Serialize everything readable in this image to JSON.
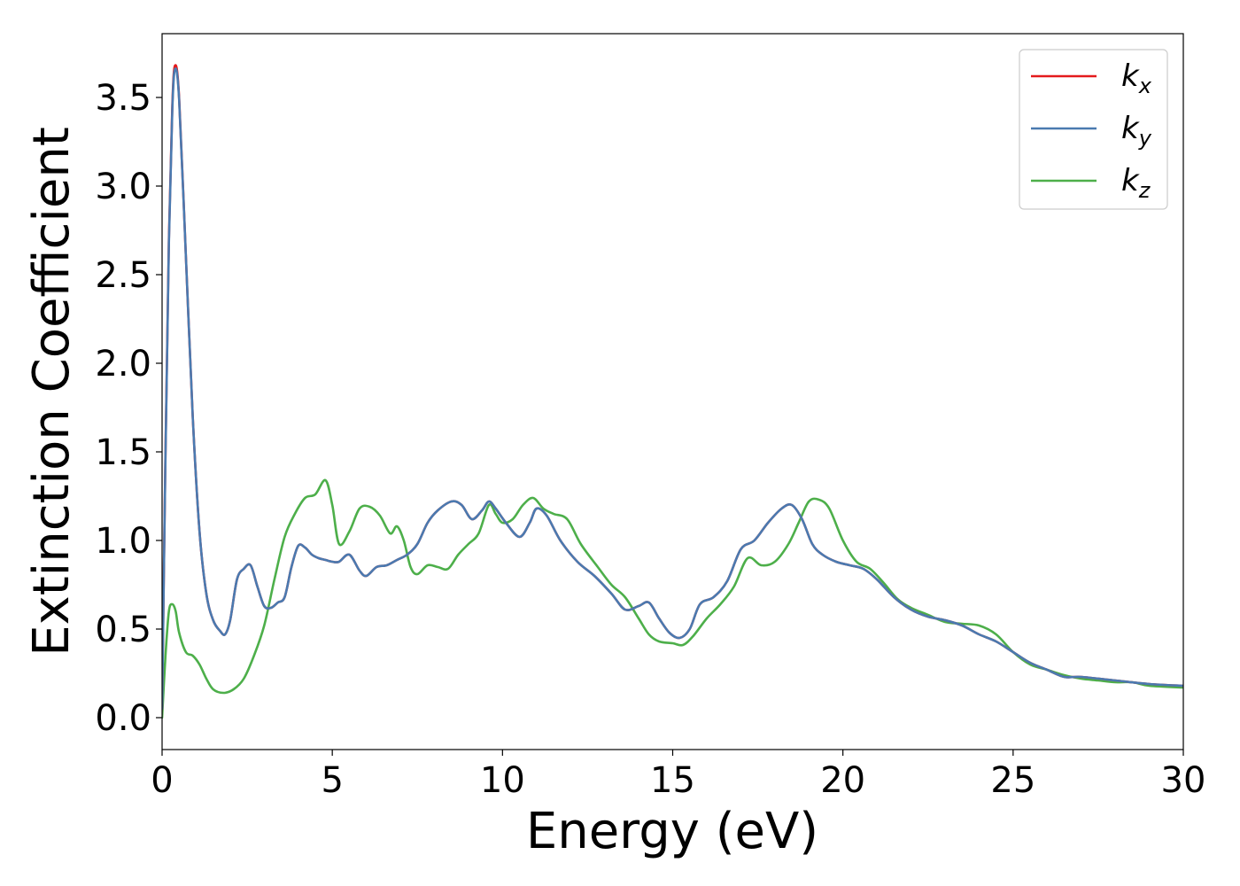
{
  "chart_data": {
    "type": "line",
    "xlabel": "Energy (eV)",
    "ylabel": "Extinction Coefficient",
    "xlim": [
      0,
      30
    ],
    "ylim": [
      -0.18,
      3.86
    ],
    "xticks": [
      0,
      5,
      10,
      15,
      20,
      25,
      30
    ],
    "yticks": [
      0.0,
      0.5,
      1.0,
      1.5,
      2.0,
      2.5,
      3.0,
      3.5
    ],
    "xtick_labels": [
      "0",
      "5",
      "10",
      "15",
      "20",
      "25",
      "30"
    ],
    "ytick_labels": [
      "0.0",
      "0.5",
      "1.0",
      "1.5",
      "2.0",
      "2.5",
      "3.0",
      "3.5"
    ],
    "legend_position": "top-right",
    "grid": false,
    "series": [
      {
        "name": "k_x",
        "label_base": "k",
        "label_sub": "x",
        "color": "#e41a1c",
        "x": [
          0,
          0.1,
          0.2,
          0.3,
          0.38,
          0.5,
          0.7,
          0.9,
          1.1,
          1.3,
          1.5,
          1.7,
          1.85,
          2.0,
          2.2,
          2.4,
          2.6,
          2.8,
          3.0,
          3.2,
          3.4,
          3.6,
          3.8,
          4.0,
          4.2,
          4.4,
          4.6,
          4.8,
          5.0,
          5.2,
          5.5,
          5.8,
          6.0,
          6.3,
          6.6,
          6.9,
          7.2,
          7.5,
          7.8,
          8.1,
          8.5,
          8.8,
          9.1,
          9.4,
          9.6,
          9.8,
          10.1,
          10.5,
          10.8,
          11.0,
          11.3,
          11.7,
          12.2,
          12.7,
          13.2,
          13.6,
          14.0,
          14.3,
          14.6,
          14.9,
          15.2,
          15.5,
          15.8,
          16.2,
          16.6,
          17.0,
          17.4,
          17.8,
          18.2,
          18.5,
          18.8,
          19.1,
          19.4,
          19.8,
          20.2,
          20.6,
          21.0,
          21.5,
          22.0,
          22.5,
          23.0,
          23.5,
          24.0,
          24.5,
          25.0,
          25.5,
          26.0,
          26.5,
          27.0,
          28.0,
          29.0,
          30.0
        ],
        "y": [
          0.05,
          1.5,
          2.7,
          3.45,
          3.68,
          3.5,
          2.6,
          1.7,
          1.05,
          0.7,
          0.55,
          0.49,
          0.47,
          0.55,
          0.78,
          0.84,
          0.86,
          0.74,
          0.63,
          0.62,
          0.65,
          0.68,
          0.85,
          0.97,
          0.96,
          0.92,
          0.9,
          0.89,
          0.88,
          0.88,
          0.92,
          0.83,
          0.8,
          0.85,
          0.86,
          0.89,
          0.92,
          0.98,
          1.1,
          1.17,
          1.22,
          1.2,
          1.12,
          1.17,
          1.22,
          1.18,
          1.1,
          1.02,
          1.1,
          1.18,
          1.14,
          1.0,
          0.88,
          0.8,
          0.7,
          0.61,
          0.63,
          0.65,
          0.56,
          0.48,
          0.45,
          0.5,
          0.64,
          0.68,
          0.77,
          0.95,
          1.0,
          1.1,
          1.18,
          1.2,
          1.12,
          0.98,
          0.92,
          0.88,
          0.86,
          0.84,
          0.78,
          0.68,
          0.61,
          0.57,
          0.55,
          0.52,
          0.47,
          0.43,
          0.37,
          0.31,
          0.27,
          0.23,
          0.23,
          0.21,
          0.19,
          0.18
        ]
      },
      {
        "name": "k_y",
        "label_base": "k",
        "label_sub": "y",
        "color": "#4a7ab0",
        "x": [
          0,
          0.1,
          0.2,
          0.3,
          0.38,
          0.5,
          0.7,
          0.9,
          1.1,
          1.3,
          1.5,
          1.7,
          1.85,
          2.0,
          2.2,
          2.4,
          2.6,
          2.8,
          3.0,
          3.2,
          3.4,
          3.6,
          3.8,
          4.0,
          4.2,
          4.4,
          4.6,
          4.8,
          5.0,
          5.2,
          5.5,
          5.8,
          6.0,
          6.3,
          6.6,
          6.9,
          7.2,
          7.5,
          7.8,
          8.1,
          8.5,
          8.8,
          9.1,
          9.4,
          9.6,
          9.8,
          10.1,
          10.5,
          10.8,
          11.0,
          11.3,
          11.7,
          12.2,
          12.7,
          13.2,
          13.6,
          14.0,
          14.3,
          14.6,
          14.9,
          15.2,
          15.5,
          15.8,
          16.2,
          16.6,
          17.0,
          17.4,
          17.8,
          18.2,
          18.5,
          18.8,
          19.1,
          19.4,
          19.8,
          20.2,
          20.6,
          21.0,
          21.5,
          22.0,
          22.5,
          23.0,
          23.5,
          24.0,
          24.5,
          25.0,
          25.5,
          26.0,
          26.5,
          27.0,
          28.0,
          29.0,
          30.0
        ],
        "y": [
          0.05,
          1.48,
          2.68,
          3.43,
          3.66,
          3.49,
          2.6,
          1.7,
          1.05,
          0.7,
          0.55,
          0.49,
          0.47,
          0.55,
          0.78,
          0.84,
          0.86,
          0.74,
          0.63,
          0.62,
          0.65,
          0.68,
          0.85,
          0.97,
          0.96,
          0.92,
          0.9,
          0.89,
          0.88,
          0.88,
          0.92,
          0.83,
          0.8,
          0.85,
          0.86,
          0.89,
          0.92,
          0.98,
          1.1,
          1.17,
          1.22,
          1.2,
          1.12,
          1.17,
          1.22,
          1.18,
          1.1,
          1.02,
          1.1,
          1.18,
          1.14,
          1.0,
          0.88,
          0.8,
          0.7,
          0.61,
          0.63,
          0.65,
          0.56,
          0.48,
          0.45,
          0.5,
          0.64,
          0.68,
          0.77,
          0.95,
          1.0,
          1.1,
          1.18,
          1.2,
          1.12,
          0.98,
          0.92,
          0.88,
          0.86,
          0.84,
          0.78,
          0.68,
          0.61,
          0.57,
          0.55,
          0.52,
          0.47,
          0.43,
          0.37,
          0.31,
          0.27,
          0.23,
          0.23,
          0.21,
          0.19,
          0.18
        ]
      },
      {
        "name": "k_z",
        "label_base": "k",
        "label_sub": "z",
        "color": "#4daf4a",
        "x": [
          0,
          0.1,
          0.2,
          0.3,
          0.4,
          0.5,
          0.7,
          0.9,
          1.1,
          1.3,
          1.5,
          1.8,
          2.1,
          2.4,
          2.7,
          3.0,
          3.3,
          3.6,
          3.9,
          4.2,
          4.5,
          4.8,
          5.0,
          5.2,
          5.5,
          5.8,
          6.1,
          6.4,
          6.7,
          6.9,
          7.1,
          7.3,
          7.5,
          7.8,
          8.1,
          8.4,
          8.7,
          9.0,
          9.3,
          9.6,
          9.8,
          10.0,
          10.3,
          10.6,
          10.9,
          11.2,
          11.5,
          11.9,
          12.3,
          12.8,
          13.2,
          13.6,
          14.0,
          14.3,
          14.6,
          15.0,
          15.3,
          15.6,
          16.0,
          16.4,
          16.8,
          17.2,
          17.6,
          18.0,
          18.4,
          18.7,
          19.0,
          19.3,
          19.6,
          20.0,
          20.4,
          20.8,
          21.2,
          21.6,
          22.0,
          22.5,
          23.0,
          23.5,
          24.0,
          24.5,
          25.0,
          25.5,
          26.0,
          26.5,
          27.0,
          27.5,
          28.0,
          28.5,
          29.0,
          30.0
        ],
        "y": [
          0.0,
          0.35,
          0.6,
          0.64,
          0.6,
          0.48,
          0.37,
          0.35,
          0.3,
          0.22,
          0.16,
          0.14,
          0.16,
          0.22,
          0.35,
          0.52,
          0.78,
          1.02,
          1.15,
          1.24,
          1.26,
          1.34,
          1.2,
          0.98,
          1.05,
          1.18,
          1.19,
          1.14,
          1.04,
          1.08,
          1.0,
          0.85,
          0.81,
          0.86,
          0.85,
          0.84,
          0.92,
          0.98,
          1.04,
          1.2,
          1.15,
          1.1,
          1.12,
          1.2,
          1.24,
          1.18,
          1.15,
          1.12,
          0.98,
          0.85,
          0.75,
          0.68,
          0.56,
          0.47,
          0.43,
          0.42,
          0.41,
          0.46,
          0.56,
          0.64,
          0.74,
          0.9,
          0.86,
          0.88,
          0.98,
          1.1,
          1.22,
          1.23,
          1.18,
          1.0,
          0.88,
          0.84,
          0.76,
          0.67,
          0.62,
          0.58,
          0.54,
          0.53,
          0.52,
          0.47,
          0.37,
          0.3,
          0.27,
          0.24,
          0.22,
          0.21,
          0.2,
          0.2,
          0.18,
          0.17
        ]
      }
    ]
  }
}
